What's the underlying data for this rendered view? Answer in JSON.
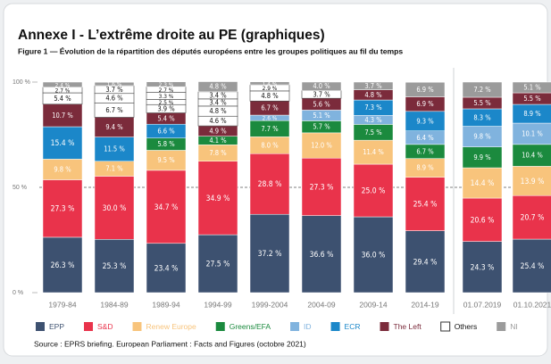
{
  "chart_data": {
    "type": "stacked_bar",
    "title": "Annexe I - L’extrême droite au PE (graphiques)",
    "subtitle": "Figure 1 — Évolution de la répartition des députés européens entre les groupes politiques au fil du temps",
    "source": "Source : EPRS briefing. European Parliament : Facts and Figures (octobre 2021)",
    "categories": [
      "1979-84",
      "1984-89",
      "1989-94",
      "1994-99",
      "1999-2004",
      "2004-09",
      "2009-14",
      "2014-19",
      "01.07.2019",
      "01.10.2021"
    ],
    "ylim": [
      0,
      100
    ],
    "yticks": [
      {
        "value": 0,
        "label": "0 %"
      },
      {
        "value": 50,
        "label": "50 %"
      },
      {
        "value": 100,
        "label": "100 %"
      }
    ],
    "series": [
      {
        "name": "EPP",
        "color": "#3d5170",
        "values": [
          26.3,
          25.3,
          23.4,
          27.5,
          37.2,
          36.6,
          36.0,
          29.4,
          24.3,
          25.4
        ],
        "value_labels": [
          "26.3 %",
          "25.3 %",
          "23.4 %",
          "27.5 %",
          "37.2 %",
          "36.6 %",
          "36.0 %",
          "29.4 %",
          "24.3 %",
          "25.4 %"
        ]
      },
      {
        "name": "S&D",
        "color": "#e9334b",
        "values": [
          27.3,
          30.0,
          34.7,
          34.9,
          28.8,
          27.3,
          25.0,
          25.4,
          20.6,
          20.7
        ],
        "value_labels": [
          "27.3 %",
          "30.0 %",
          "34.7 %",
          "34.9 %",
          "28.8 %",
          "27.3 %",
          "25.0 %",
          "25.4 %",
          "20.6 %",
          "20.7 %"
        ]
      },
      {
        "name": "Renew Europe",
        "color": "#f8c47c",
        "values": [
          9.8,
          7.1,
          9.5,
          7.8,
          8.0,
          12.0,
          11.4,
          8.9,
          14.4,
          13.9
        ],
        "value_labels": [
          "9.8 %",
          "7.1 %",
          "9.5 %",
          "7.8 %",
          "8.0 %",
          "12.0 %",
          "11.4 %",
          "8.9 %",
          "14.4 %",
          "13.9 %"
        ]
      },
      {
        "name": "Greens/EFA",
        "color": "#1b8a3e",
        "values": [
          null,
          null,
          5.8,
          4.1,
          7.7,
          5.7,
          7.5,
          6.7,
          9.9,
          10.4
        ],
        "value_labels": [
          null,
          null,
          "5.8 %",
          "4.1 %",
          "7.7 %",
          "5.7 %",
          "7.5 %",
          "6.7 %",
          "9.9 %",
          "10.4 %"
        ]
      },
      {
        "name": "ID",
        "color": "#80b3de",
        "values": [
          null,
          null,
          null,
          null,
          2.6,
          5.1,
          4.3,
          6.4,
          9.8,
          10.1
        ],
        "value_labels": [
          null,
          null,
          null,
          null,
          "2.6 %",
          "5.1 %",
          "4.3 %",
          "6.4 %",
          "9.8 %",
          "10.1 %"
        ]
      },
      {
        "name": "ECR",
        "color": "#1b87c9",
        "values": [
          15.4,
          11.5,
          6.6,
          null,
          null,
          null,
          7.3,
          9.3,
          8.3,
          8.9
        ],
        "value_labels": [
          "15.4 %",
          "11.5 %",
          "6.6 %",
          null,
          null,
          null,
          "7.3 %",
          "9.3 %",
          "8.3 %",
          "8.9 %"
        ]
      },
      {
        "name": "The Left",
        "color": "#7b2b3b",
        "values": [
          10.7,
          9.4,
          5.4,
          4.9,
          6.7,
          5.6,
          4.8,
          6.9,
          5.5,
          5.5
        ],
        "value_labels": [
          "10.7 %",
          "9.4 %",
          "5.4 %",
          "4.9 %",
          "6.7 %",
          "5.6 %",
          "4.8 %",
          "6.9 %",
          "5.5 %",
          "5.5 %"
        ]
      },
      {
        "name": "Others",
        "color": "#ffffff",
        "values": [
          5.4,
          6.7,
          3.9,
          4.6,
          4.8,
          3.7,
          null,
          null,
          null,
          null
        ],
        "value_labels": [
          "5.4 %",
          "6.7 %",
          "3.9 %",
          "4.6 %",
          "4.8 %",
          "3.7 %",
          null,
          null,
          null,
          null
        ]
      },
      {
        "name": "Others",
        "color": "#ffffff",
        "values": [
          2.7,
          4.6,
          2.5,
          4.8,
          2.9,
          null,
          null,
          null,
          null,
          null
        ],
        "value_labels": [
          "2.7 %",
          "4.6 %",
          "2.5 %",
          "4.8 %",
          "2.9 %",
          null,
          null,
          null,
          null,
          null
        ]
      },
      {
        "name": "Others",
        "color": "#ffffff",
        "values": [
          null,
          3.7,
          3.3,
          3.4,
          null,
          null,
          null,
          null,
          null,
          null
        ],
        "value_labels": [
          null,
          "3.7 %",
          "3.3 %",
          "3.4 %",
          null,
          null,
          null,
          null,
          null,
          null
        ]
      },
      {
        "name": "Others",
        "color": "#ffffff",
        "values": [
          null,
          null,
          2.7,
          3.4,
          null,
          null,
          null,
          null,
          null,
          null
        ],
        "value_labels": [
          null,
          null,
          "2.7 %",
          "3.4 %",
          null,
          null,
          null,
          null,
          null,
          null
        ]
      },
      {
        "name": "NI",
        "color": "#9b9b9b",
        "values": [
          2.4,
          1.6,
          2.3,
          4.8,
          1.4,
          4.0,
          3.7,
          6.9,
          7.2,
          5.1
        ],
        "value_labels": [
          "2.4 %",
          "1.6 %",
          "2.3 %",
          "4.8 %",
          "1.4 %",
          "4.0 %",
          "3.7 %",
          "6.9 %",
          "7.2 %",
          "5.1 %"
        ]
      }
    ]
  }
}
